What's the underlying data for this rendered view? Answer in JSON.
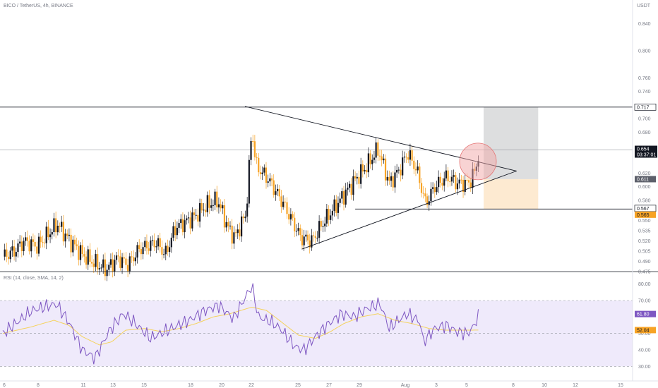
{
  "header": {
    "symbol": "BICO / TetherUS, 4h, BINANCE",
    "currency": "USDT"
  },
  "rsi_header": "RSI (14, close, SMA, 14, 2)",
  "price_tags": {
    "resistance": "0.717",
    "last_price": "0.654",
    "countdown": "03:37:01",
    "stop": "0.611",
    "support": "0.567",
    "target_low": "0.565",
    "rsi_value": "61.80",
    "rsi_sma": "52.04"
  },
  "colors": {
    "up": "#131722",
    "down": "#f7a325",
    "rsi_line": "#7e57c2",
    "rsi_sma": "#f5d35e",
    "rsi_band": "#efeafb",
    "highlight": "#f2a8a8",
    "stop_zone": "#d9dadc",
    "target_zone": "#fde8cc"
  },
  "chart_data": [
    {
      "type": "candlestick",
      "title": "BICO / TetherUS, 4h, BINANCE",
      "y_axis_unit": "USDT",
      "ylim": [
        0.476,
        0.858
      ],
      "y_ticks": [
        0.84,
        0.8,
        0.76,
        0.74,
        0.7,
        0.68,
        0.62,
        0.6,
        0.58,
        0.55,
        0.535,
        0.52,
        0.505,
        0.49,
        0.475
      ],
      "x_tick_labels": [
        "6",
        "8",
        "11",
        "13",
        "15",
        "18",
        "20",
        "22",
        "25",
        "27",
        "29",
        "Aug",
        "3",
        "5",
        "8",
        "10",
        "12",
        "15"
      ],
      "horizontal_levels": [
        0.717,
        0.654,
        0.567
      ],
      "trendlines": [
        {
          "from": [
            21.3,
            0.718
          ],
          "to": [
            45.2,
            0.623
          ]
        },
        {
          "from": [
            26.3,
            0.508
          ],
          "to": [
            45.2,
            0.623
          ]
        }
      ],
      "position_zones": [
        {
          "kind": "target",
          "from_x": 42.3,
          "to_x": 47.1,
          "y_range": [
            0.611,
            0.717
          ]
        },
        {
          "kind": "stop",
          "from_x": 42.3,
          "to_x": 47.1,
          "y_range": [
            0.567,
            0.611
          ]
        }
      ],
      "highlight_circle": {
        "x": 41.8,
        "y": 0.637
      },
      "anchors": [
        [
          0.0,
          0.497
        ],
        [
          1.0,
          0.505
        ],
        [
          1.9,
          0.52
        ],
        [
          3.0,
          0.512
        ],
        [
          4.8,
          0.545
        ],
        [
          5.8,
          0.522
        ],
        [
          7.0,
          0.5
        ],
        [
          8.0,
          0.488
        ],
        [
          9.1,
          0.478
        ],
        [
          10.1,
          0.495
        ],
        [
          11.0,
          0.485
        ],
        [
          12.0,
          0.508
        ],
        [
          13.5,
          0.518
        ],
        [
          14.3,
          0.5
        ],
        [
          15.2,
          0.54
        ],
        [
          16.8,
          0.555
        ],
        [
          17.9,
          0.572
        ],
        [
          18.9,
          0.58
        ],
        [
          19.8,
          0.54
        ],
        [
          20.4,
          0.525
        ],
        [
          21.4,
          0.56
        ],
        [
          21.9,
          0.685
        ],
        [
          22.3,
          0.63
        ],
        [
          23.4,
          0.61
        ],
        [
          24.5,
          0.58
        ],
        [
          25.6,
          0.545
        ],
        [
          26.2,
          0.525
        ],
        [
          27.2,
          0.52
        ],
        [
          28.1,
          0.545
        ],
        [
          29.0,
          0.565
        ],
        [
          30.1,
          0.59
        ],
        [
          31.0,
          0.61
        ],
        [
          32.0,
          0.63
        ],
        [
          33.0,
          0.655
        ],
        [
          34.0,
          0.605
        ],
        [
          34.9,
          0.625
        ],
        [
          35.6,
          0.65
        ],
        [
          36.4,
          0.625
        ],
        [
          37.2,
          0.575
        ],
        [
          38.0,
          0.6
        ],
        [
          39.1,
          0.615
        ],
        [
          40.0,
          0.605
        ],
        [
          41.0,
          0.605
        ],
        [
          41.6,
          0.625
        ],
        [
          41.9,
          0.654
        ]
      ]
    },
    {
      "type": "line",
      "title": "RSI (14, close, SMA, 14, 2)",
      "ylim": [
        28,
        82
      ],
      "y_ticks": [
        80.0,
        70.0,
        50.0,
        40.0,
        30.0
      ],
      "band": [
        30,
        70
      ],
      "midline": 50,
      "series": [
        {
          "name": "RSI",
          "anchors": [
            [
              0.0,
              50
            ],
            [
              2.6,
              64
            ],
            [
              4.7,
              68
            ],
            [
              5.8,
              57
            ],
            [
              7.0,
              40
            ],
            [
              8.1,
              35
            ],
            [
              9.4,
              52
            ],
            [
              10.6,
              62
            ],
            [
              11.5,
              57
            ],
            [
              13.0,
              47
            ],
            [
              14.5,
              52
            ],
            [
              16.4,
              58
            ],
            [
              17.8,
              64
            ],
            [
              19.0,
              67
            ],
            [
              20.3,
              59
            ],
            [
              21.9,
              79
            ],
            [
              22.5,
              60
            ],
            [
              23.6,
              57
            ],
            [
              24.4,
              53
            ],
            [
              25.7,
              42
            ],
            [
              26.5,
              40
            ],
            [
              27.5,
              48
            ],
            [
              28.5,
              55
            ],
            [
              29.8,
              62
            ],
            [
              30.9,
              60
            ],
            [
              32.0,
              65
            ],
            [
              33.2,
              68
            ],
            [
              34.0,
              53
            ],
            [
              34.8,
              58
            ],
            [
              35.6,
              62
            ],
            [
              36.7,
              57
            ],
            [
              37.0,
              45
            ],
            [
              38.0,
              53
            ],
            [
              39.0,
              55
            ],
            [
              40.0,
              51
            ],
            [
              40.9,
              50
            ],
            [
              41.4,
              54
            ],
            [
              41.9,
              61.8
            ]
          ]
        },
        {
          "name": "SMA",
          "anchors": [
            [
              0.0,
              50
            ],
            [
              2.5,
              54
            ],
            [
              4.5,
              58
            ],
            [
              5.8,
              55
            ],
            [
              7.0,
              48
            ],
            [
              8.5,
              43
            ],
            [
              9.6,
              45
            ],
            [
              10.8,
              52
            ],
            [
              12.5,
              53
            ],
            [
              14.0,
              51
            ],
            [
              15.5,
              53
            ],
            [
              17.0,
              56
            ],
            [
              18.5,
              60
            ],
            [
              20.0,
              62
            ],
            [
              21.9,
              66
            ],
            [
              23.2,
              64
            ],
            [
              24.5,
              57
            ],
            [
              26.0,
              49
            ],
            [
              27.5,
              47
            ],
            [
              28.8,
              51
            ],
            [
              30.0,
              56
            ],
            [
              31.5,
              60
            ],
            [
              33.0,
              62
            ],
            [
              34.5,
              58
            ],
            [
              36.0,
              56
            ],
            [
              37.5,
              53
            ],
            [
              38.9,
              52
            ],
            [
              40.0,
              52
            ],
            [
              41.0,
              52
            ],
            [
              41.9,
              52.04
            ]
          ]
        }
      ]
    }
  ]
}
